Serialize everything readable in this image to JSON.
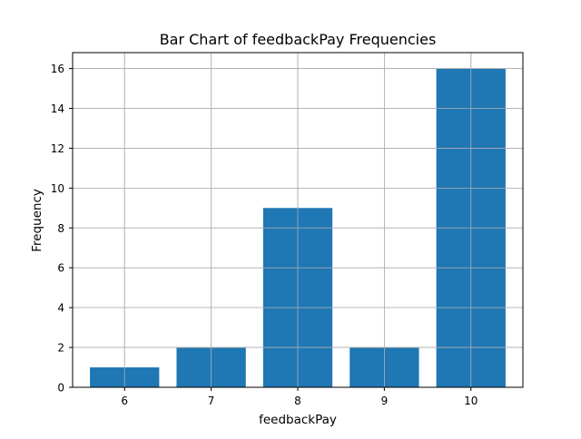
{
  "chart_data": {
    "type": "bar",
    "title": "Bar Chart of feedbackPay Frequencies",
    "xlabel": "feedbackPay",
    "ylabel": "Frequency",
    "categories": [
      6,
      7,
      8,
      9,
      10
    ],
    "values": [
      1,
      2,
      9,
      2,
      16
    ],
    "xlim": [
      5.4,
      10.6
    ],
    "ylim": [
      0,
      16.8
    ],
    "xticks": [
      "6",
      "7",
      "8",
      "9",
      "10"
    ],
    "yticks": [
      0,
      2,
      4,
      6,
      8,
      10,
      12,
      14,
      16
    ],
    "bar_width": 0.8,
    "grid": true,
    "colors": {
      "bar": "#1f77b4",
      "grid": "#b0b0b0",
      "axis": "#000000"
    }
  }
}
